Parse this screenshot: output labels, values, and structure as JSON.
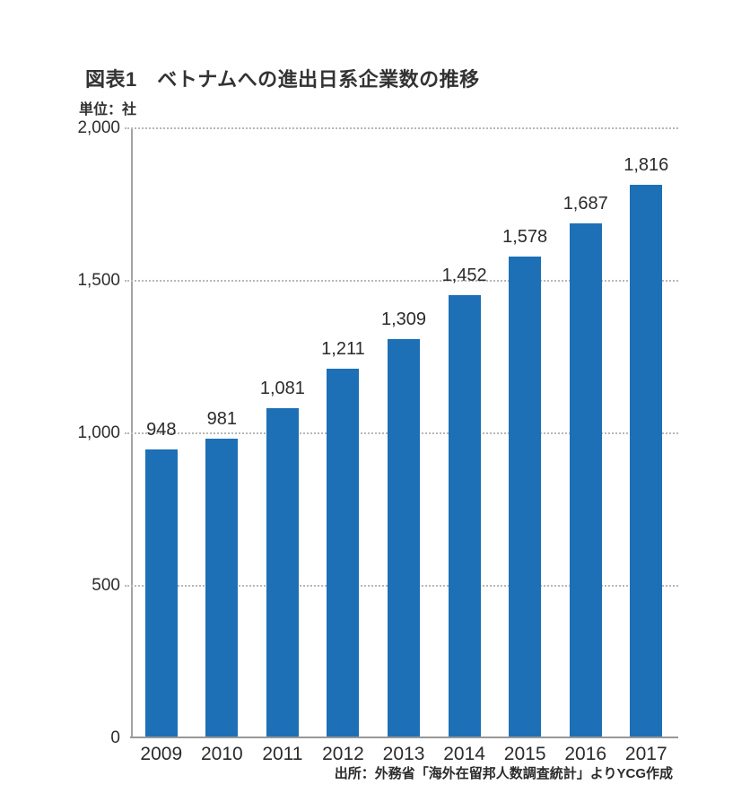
{
  "header": {
    "title": "図表1　ベトナムへの進出日系企業数の推移",
    "unit_label": "単位：社"
  },
  "footer": {
    "source": "出所：外務省「海外在留邦人数調査統計」よりYCG作成"
  },
  "chart_data": {
    "type": "bar",
    "title": "図表1　ベトナムへの進出日系企業数の推移",
    "unit": "単位：社",
    "source": "出所：外務省「海外在留邦人数調査統計」よりYCG作成",
    "categories": [
      "2009",
      "2010",
      "2011",
      "2012",
      "2013",
      "2014",
      "2015",
      "2016",
      "2017"
    ],
    "values": [
      948,
      981,
      1081,
      1211,
      1309,
      1452,
      1578,
      1687,
      1816
    ],
    "value_labels": [
      "948",
      "981",
      "1,081",
      "1,211",
      "1,309",
      "1,452",
      "1,578",
      "1,687",
      "1,816"
    ],
    "xlabel": "",
    "ylabel": "単位：社",
    "ylim": [
      0,
      2000
    ],
    "yticks": [
      0,
      500,
      1000,
      1500,
      2000
    ],
    "ytick_labels": [
      "0",
      "500",
      "1,000",
      "1,500",
      "2,000"
    ],
    "grid": "horizontal-dotted",
    "legend": "none",
    "bar_color": "#1d70b6"
  }
}
